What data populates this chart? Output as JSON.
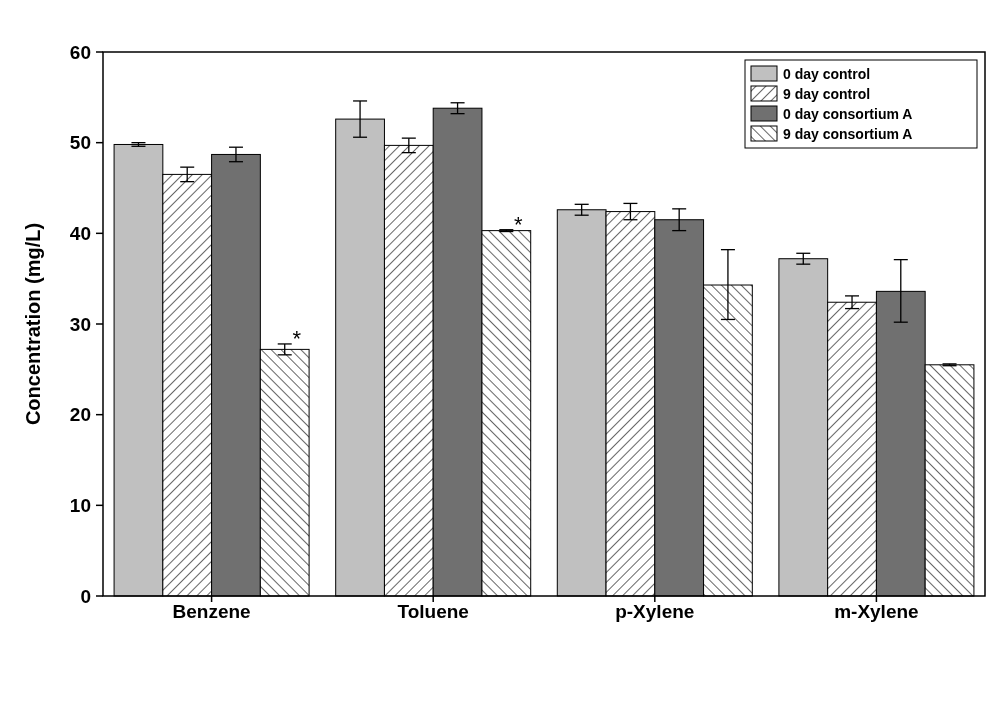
{
  "chart_data": {
    "type": "bar",
    "ylabel": "Concentration (mg/L)",
    "categories": [
      "Benzene",
      "Toluene",
      "p-Xylene",
      "m-Xylene"
    ],
    "ylim": [
      0,
      60
    ],
    "yticks": [
      0,
      10,
      20,
      30,
      40,
      50,
      60
    ],
    "grid": false,
    "legend": "top right",
    "series": [
      {
        "name": "0 day control",
        "color": "#c0c0c0",
        "values": [
          49.8,
          52.6,
          42.6,
          37.2
        ],
        "errors": [
          0.2,
          2.0,
          0.6,
          0.6
        ]
      },
      {
        "name": "9 day control",
        "color": "#000000",
        "values": [
          46.5,
          49.7,
          42.4,
          32.4
        ],
        "errors": [
          0.8,
          0.8,
          0.9,
          0.7
        ]
      },
      {
        "name": "0 day consortium A",
        "color": "#707070",
        "values": [
          48.7,
          53.8,
          41.5,
          33.6
        ],
        "errors": [
          0.8,
          0.6,
          1.2,
          [
            30.2,
            37.1
          ]
        ]
      },
      {
        "name": "9 day consortium A",
        "color": "#000000",
        "values": [
          27.2,
          40.3,
          34.3,
          25.5
        ],
        "errors": [
          0.6,
          0.1,
          [
            30.5,
            38.2
          ],
          0.1
        ],
        "value_labels": [
          "*",
          "*",
          null,
          null
        ]
      }
    ]
  }
}
